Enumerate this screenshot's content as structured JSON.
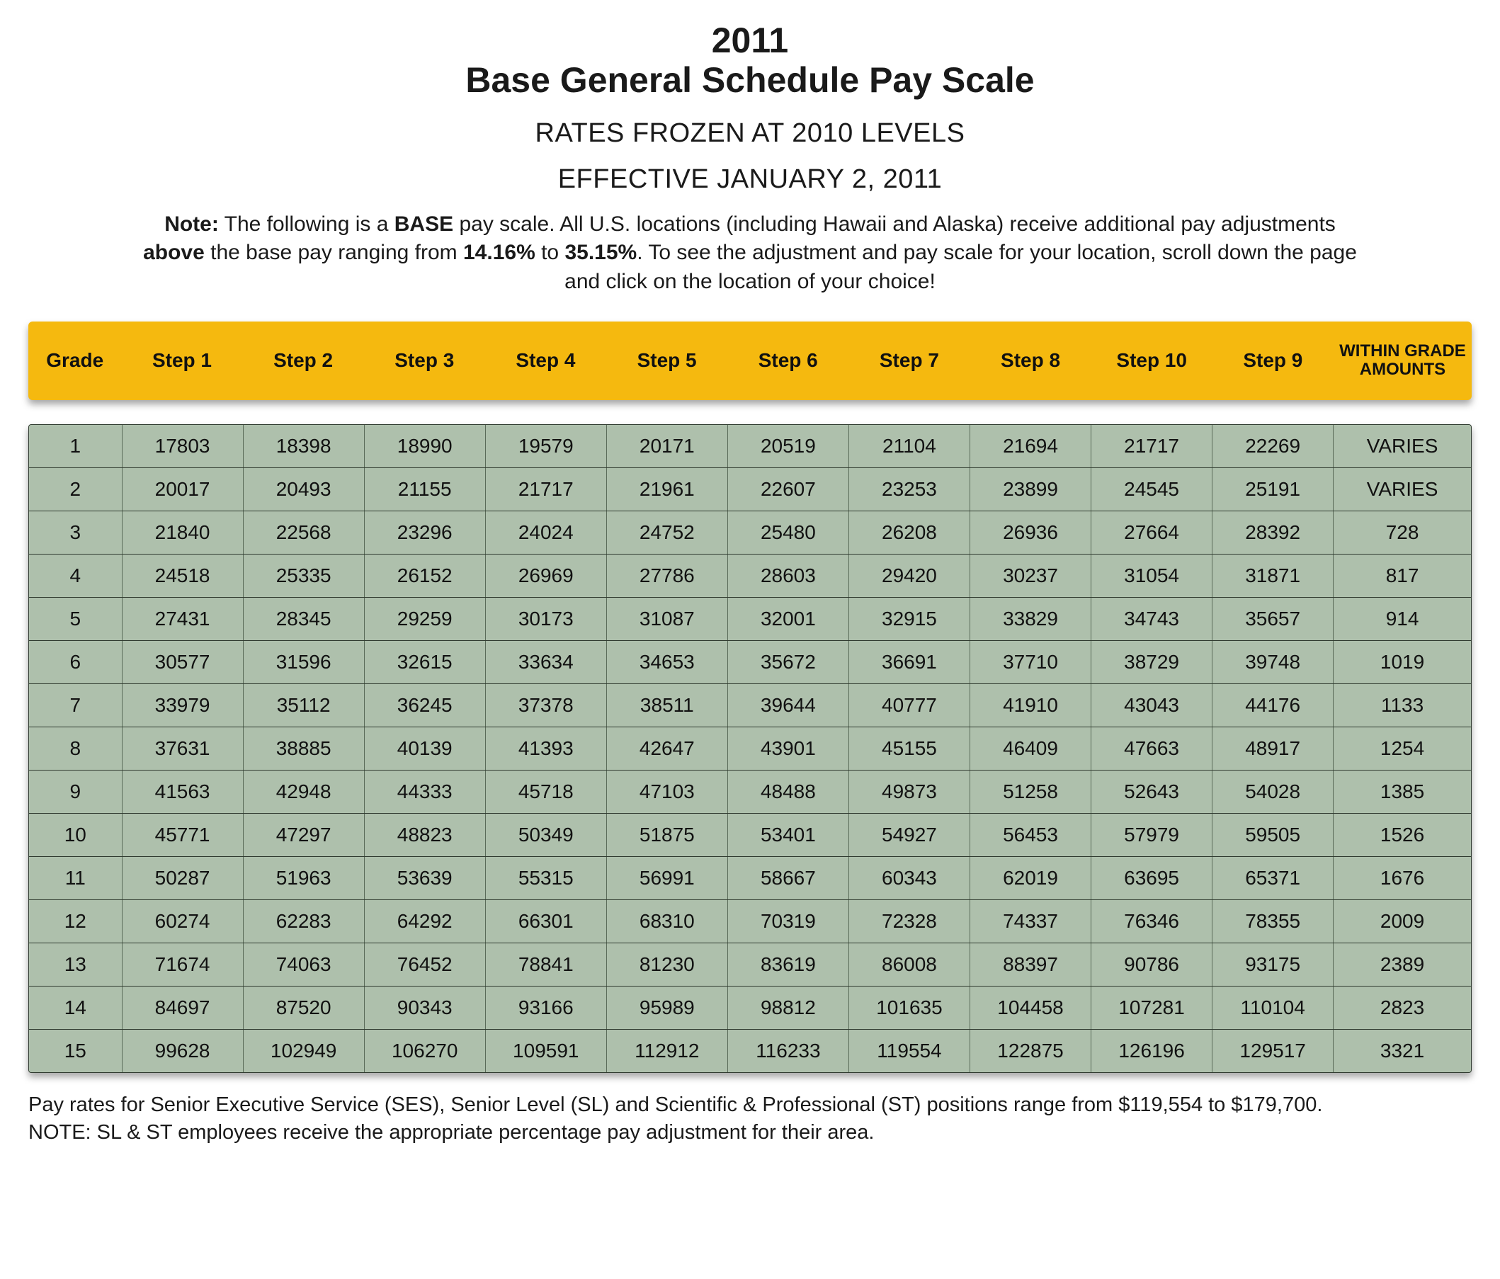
{
  "header": {
    "year": "2011",
    "title": "Base General Schedule Pay Scale",
    "subtitle1": "RATES FROZEN AT 2010 LEVELS",
    "subtitle2": "EFFECTIVE JANUARY 2, 2011"
  },
  "note": {
    "lead": "Note:",
    "part1": " The following is a ",
    "base_word": "BASE",
    "part2": " pay scale.  All U.S. locations (including Hawaii and Alaska) receive additional pay adjustments ",
    "above_word": "above",
    "part3": " the base pay ranging from ",
    "pct_low": "14.16%",
    "part4": " to ",
    "pct_high": "35.15%",
    "part5": ". To see the adjustment and pay scale for your location, scroll down the page and click on the location of your choice!"
  },
  "table": {
    "header_bg": "#f5b90f",
    "row_bg": "#aec0ac",
    "border_color": "#2f3a2f",
    "cell_border_color": "#5a6b59",
    "columns": [
      "Grade",
      "Step 1",
      "Step 2",
      "Step 3",
      "Step 4",
      "Step 5",
      "Step 6",
      "Step 7",
      "Step 8",
      "Step 10",
      "Step 9",
      "WITHIN GRADE AMOUNTS"
    ],
    "rows": [
      [
        "1",
        "17803",
        "18398",
        "18990",
        "19579",
        "20171",
        "20519",
        "21104",
        "21694",
        "21717",
        "22269",
        "VARIES"
      ],
      [
        "2",
        "20017",
        "20493",
        "21155",
        "21717",
        "21961",
        "22607",
        "23253",
        "23899",
        "24545",
        "25191",
        "VARIES"
      ],
      [
        "3",
        "21840",
        "22568",
        "23296",
        "24024",
        "24752",
        "25480",
        "26208",
        "26936",
        "27664",
        "28392",
        "728"
      ],
      [
        "4",
        "24518",
        "25335",
        "26152",
        "26969",
        "27786",
        "28603",
        "29420",
        "30237",
        "31054",
        "31871",
        "817"
      ],
      [
        "5",
        "27431",
        "28345",
        "29259",
        "30173",
        "31087",
        "32001",
        "32915",
        "33829",
        "34743",
        "35657",
        "914"
      ],
      [
        "6",
        "30577",
        "31596",
        "32615",
        "33634",
        "34653",
        "35672",
        "36691",
        "37710",
        "38729",
        "39748",
        "1019"
      ],
      [
        "7",
        "33979",
        "35112",
        "36245",
        "37378",
        "38511",
        "39644",
        "40777",
        "41910",
        "43043",
        "44176",
        "1133"
      ],
      [
        "8",
        "37631",
        "38885",
        "40139",
        "41393",
        "42647",
        "43901",
        "45155",
        "46409",
        "47663",
        "48917",
        "1254"
      ],
      [
        "9",
        "41563",
        "42948",
        "44333",
        "45718",
        "47103",
        "48488",
        "49873",
        "51258",
        "52643",
        "54028",
        "1385"
      ],
      [
        "10",
        "45771",
        "47297",
        "48823",
        "50349",
        "51875",
        "53401",
        "54927",
        "56453",
        "57979",
        "59505",
        "1526"
      ],
      [
        "11",
        "50287",
        "51963",
        "53639",
        "55315",
        "56991",
        "58667",
        "60343",
        "62019",
        "63695",
        "65371",
        "1676"
      ],
      [
        "12",
        "60274",
        "62283",
        "64292",
        "66301",
        "68310",
        "70319",
        "72328",
        "74337",
        "76346",
        "78355",
        "2009"
      ],
      [
        "13",
        "71674",
        "74063",
        "76452",
        "78841",
        "81230",
        "83619",
        "86008",
        "88397",
        "90786",
        "93175",
        "2389"
      ],
      [
        "14",
        "84697",
        "87520",
        "90343",
        "93166",
        "95989",
        "98812",
        "101635",
        "104458",
        "107281",
        "110104",
        "2823"
      ],
      [
        "15",
        "99628",
        "102949",
        "106270",
        "109591",
        "112912",
        "116233",
        "119554",
        "122875",
        "126196",
        "129517",
        "3321"
      ]
    ]
  },
  "footnote": {
    "line1": "Pay rates for Senior Executive Service (SES), Senior Level (SL) and Scientific & Professional (ST) positions range from $119,554 to $179,700.",
    "line2": "NOTE: SL & ST employees receive the appropriate percentage pay adjustment for their area."
  }
}
